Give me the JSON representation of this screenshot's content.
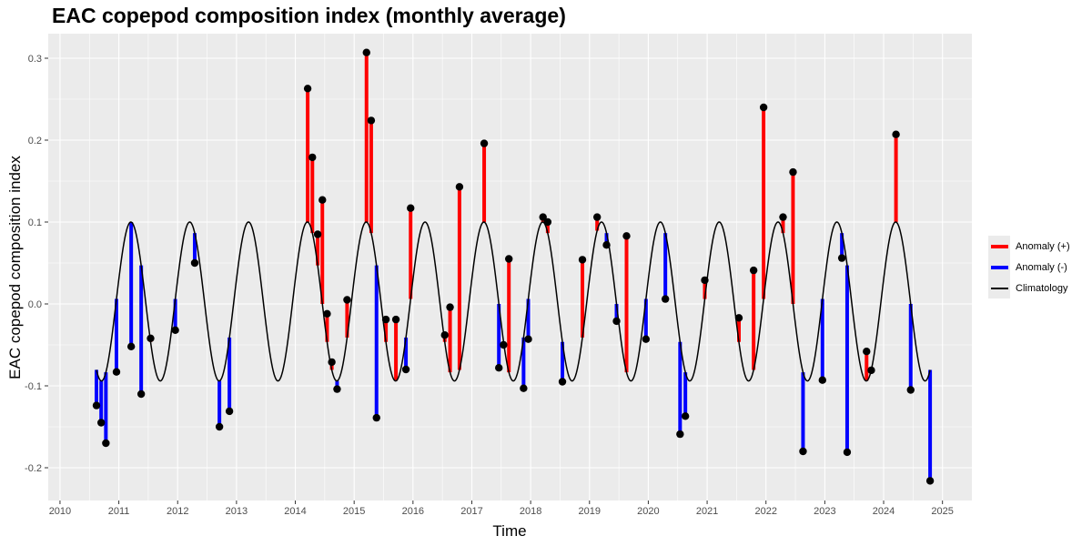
{
  "chart_data": {
    "type": "line",
    "title": "EAC copepod composition index (monthly average)",
    "xlabel": "Time",
    "ylabel": "EAC copepod composition index",
    "xlim": [
      2009.8,
      2025.5
    ],
    "ylim": [
      -0.24,
      0.33
    ],
    "x_ticks": [
      2010,
      2011,
      2012,
      2013,
      2014,
      2015,
      2016,
      2017,
      2018,
      2019,
      2020,
      2021,
      2022,
      2023,
      2024,
      2025
    ],
    "y_ticks": [
      -0.2,
      -0.1,
      0.0,
      0.1,
      0.2,
      0.3
    ],
    "y_tick_labels": [
      "-0.2",
      "-0.1",
      "0.0",
      "0.1",
      "0.2",
      "0.3"
    ],
    "grid": true,
    "legend_position": "right",
    "series": [
      {
        "name": "Anomaly (+)",
        "color": "#ff0000"
      },
      {
        "name": "Anomaly (-)",
        "color": "#0000ff"
      },
      {
        "name": "Climatology",
        "color": "#000000"
      }
    ],
    "climatology": {
      "mean": 0.003,
      "amplitude": 0.097,
      "peak_year_fraction": 0.205
    },
    "observations": [
      {
        "x": 2010.62,
        "y": -0.124
      },
      {
        "x": 2010.7,
        "y": -0.145
      },
      {
        "x": 2010.78,
        "y": -0.17
      },
      {
        "x": 2010.96,
        "y": -0.083
      },
      {
        "x": 2011.21,
        "y": -0.052
      },
      {
        "x": 2011.38,
        "y": -0.11
      },
      {
        "x": 2011.54,
        "y": -0.042
      },
      {
        "x": 2011.96,
        "y": -0.032
      },
      {
        "x": 2012.29,
        "y": 0.05
      },
      {
        "x": 2012.71,
        "y": -0.15
      },
      {
        "x": 2012.88,
        "y": -0.131
      },
      {
        "x": 2014.21,
        "y": 0.263
      },
      {
        "x": 2014.29,
        "y": 0.179
      },
      {
        "x": 2014.38,
        "y": 0.085
      },
      {
        "x": 2014.46,
        "y": 0.127
      },
      {
        "x": 2014.54,
        "y": -0.012
      },
      {
        "x": 2014.62,
        "y": -0.071
      },
      {
        "x": 2014.71,
        "y": -0.104
      },
      {
        "x": 2014.88,
        "y": 0.005
      },
      {
        "x": 2015.21,
        "y": 0.307
      },
      {
        "x": 2015.29,
        "y": 0.224
      },
      {
        "x": 2015.38,
        "y": -0.139
      },
      {
        "x": 2015.54,
        "y": -0.019
      },
      {
        "x": 2015.71,
        "y": -0.019
      },
      {
        "x": 2015.88,
        "y": -0.08
      },
      {
        "x": 2015.96,
        "y": 0.117
      },
      {
        "x": 2016.54,
        "y": -0.038
      },
      {
        "x": 2016.63,
        "y": -0.004
      },
      {
        "x": 2016.79,
        "y": 0.143
      },
      {
        "x": 2017.21,
        "y": 0.196
      },
      {
        "x": 2017.46,
        "y": -0.078
      },
      {
        "x": 2017.54,
        "y": -0.05
      },
      {
        "x": 2017.63,
        "y": 0.055
      },
      {
        "x": 2017.88,
        "y": -0.103
      },
      {
        "x": 2017.96,
        "y": -0.043
      },
      {
        "x": 2018.21,
        "y": 0.106
      },
      {
        "x": 2018.29,
        "y": 0.1
      },
      {
        "x": 2018.54,
        "y": -0.095
      },
      {
        "x": 2018.88,
        "y": 0.054
      },
      {
        "x": 2019.13,
        "y": 0.106
      },
      {
        "x": 2019.29,
        "y": 0.072
      },
      {
        "x": 2019.46,
        "y": -0.021
      },
      {
        "x": 2019.63,
        "y": 0.083
      },
      {
        "x": 2019.96,
        "y": -0.043
      },
      {
        "x": 2020.29,
        "y": 0.006
      },
      {
        "x": 2020.54,
        "y": -0.159
      },
      {
        "x": 2020.63,
        "y": -0.137
      },
      {
        "x": 2020.96,
        "y": 0.029
      },
      {
        "x": 2021.54,
        "y": -0.017
      },
      {
        "x": 2021.79,
        "y": 0.041
      },
      {
        "x": 2021.96,
        "y": 0.24
      },
      {
        "x": 2022.29,
        "y": 0.106
      },
      {
        "x": 2022.46,
        "y": 0.161
      },
      {
        "x": 2022.63,
        "y": -0.18
      },
      {
        "x": 2022.96,
        "y": -0.093
      },
      {
        "x": 2023.29,
        "y": 0.056
      },
      {
        "x": 2023.38,
        "y": -0.181
      },
      {
        "x": 2023.71,
        "y": -0.058
      },
      {
        "x": 2023.79,
        "y": -0.081
      },
      {
        "x": 2024.21,
        "y": 0.207
      },
      {
        "x": 2024.46,
        "y": -0.105
      },
      {
        "x": 2024.79,
        "y": -0.216
      }
    ]
  }
}
